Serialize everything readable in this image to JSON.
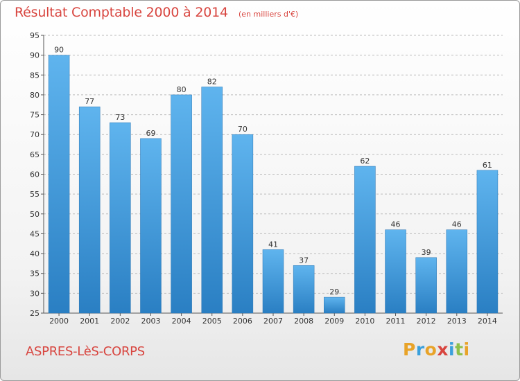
{
  "header": {
    "title": "Résultat Comptable 2000 à 2014",
    "units": "(en milliers d'€)"
  },
  "footer": {
    "place": "ASPRES-LèS-CORPS",
    "logo": "Proxiti"
  },
  "colors": {
    "title": "#d8453f",
    "bar_top": "#5fb4ee",
    "bar_bottom": "#2a7fc3",
    "grid": "#bbbbbb",
    "logo_letters": [
      "#e8a328",
      "#3aa0dc",
      "#e8a328",
      "#d8453f",
      "#3aa0dc",
      "#8dc04a",
      "#e8a328"
    ]
  },
  "chart_data": {
    "type": "bar",
    "title": "Résultat Comptable 2000 à 2014",
    "subtitle": "(en milliers d'€)",
    "xlabel": "",
    "ylabel": "",
    "categories": [
      "2000",
      "2001",
      "2002",
      "2003",
      "2004",
      "2005",
      "2006",
      "2007",
      "2008",
      "2009",
      "2010",
      "2011",
      "2012",
      "2013",
      "2014"
    ],
    "values": [
      90,
      77,
      73,
      69,
      80,
      82,
      70,
      41,
      37,
      29,
      62,
      46,
      39,
      46,
      61
    ],
    "ylim": [
      25,
      95
    ],
    "yticks": [
      25,
      30,
      35,
      40,
      45,
      50,
      55,
      60,
      65,
      70,
      75,
      80,
      85,
      90,
      95
    ],
    "grid": true,
    "grid_style": "dashed horizontal",
    "data_labels": true
  }
}
